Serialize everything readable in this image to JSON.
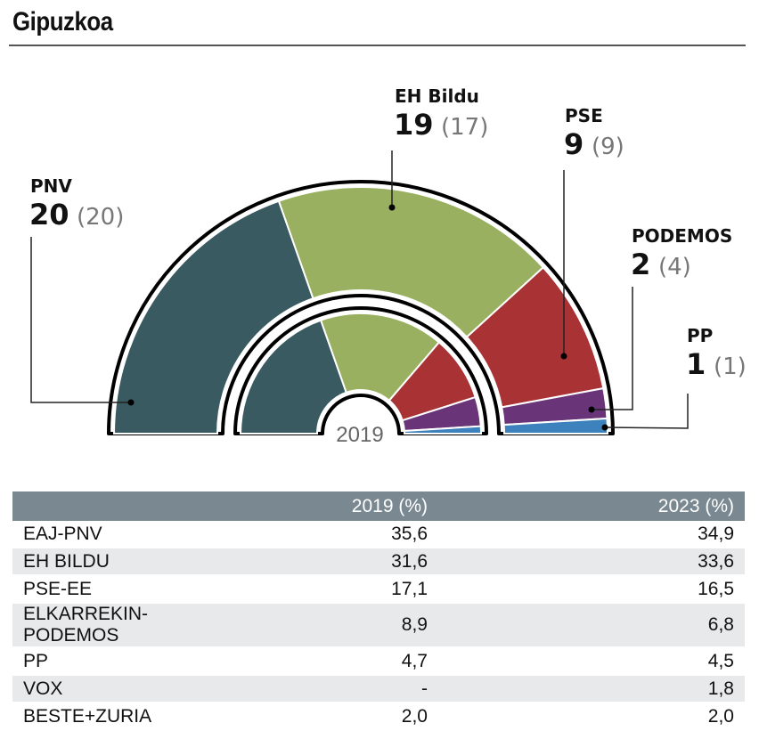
{
  "title": "Gipuzkoa",
  "chart_data": {
    "type": "parliament-semicircle",
    "title": "Gipuzkoa",
    "inner_ring_label": "2019",
    "total_seats": 51,
    "parties": [
      {
        "label": "PNV",
        "seats_2023": 20,
        "seats_2019": 20,
        "prev_text": "(20)",
        "color": "#3a5a61"
      },
      {
        "label": "EH Bildu",
        "seats_2023": 19,
        "seats_2019": 17,
        "prev_text": "(17)",
        "color": "#98b060"
      },
      {
        "label": "PSE",
        "seats_2023": 9,
        "seats_2019": 9,
        "prev_text": "(9)",
        "color": "#a83234"
      },
      {
        "label": "PODEMOS",
        "seats_2023": 2,
        "seats_2019": 4,
        "prev_text": "(4)",
        "color": "#6a3578"
      },
      {
        "label": "PP",
        "seats_2023": 1,
        "seats_2019": 1,
        "prev_text": "(1)",
        "color": "#3e82bd"
      }
    ]
  },
  "table": {
    "headers": [
      "",
      "2019 (%)",
      "2023 (%)"
    ],
    "rows": [
      {
        "party": "EAJ-PNV",
        "y2019": "35,6",
        "y2023": "34,9"
      },
      {
        "party": "EH BILDU",
        "y2019": "31,6",
        "y2023": "33,6"
      },
      {
        "party": "PSE-EE",
        "y2019": "17,1",
        "y2023": "16,5"
      },
      {
        "party": "ELKARREKIN-PODEMOS",
        "y2019": "8,9",
        "y2023": "6,8"
      },
      {
        "party": "PP",
        "y2019": "4,7",
        "y2023": "4,5"
      },
      {
        "party": "VOX",
        "y2019": "-",
        "y2023": "1,8"
      },
      {
        "party": "BESTE+ZURIA",
        "y2019": "2,0",
        "y2023": "2,0"
      }
    ]
  }
}
